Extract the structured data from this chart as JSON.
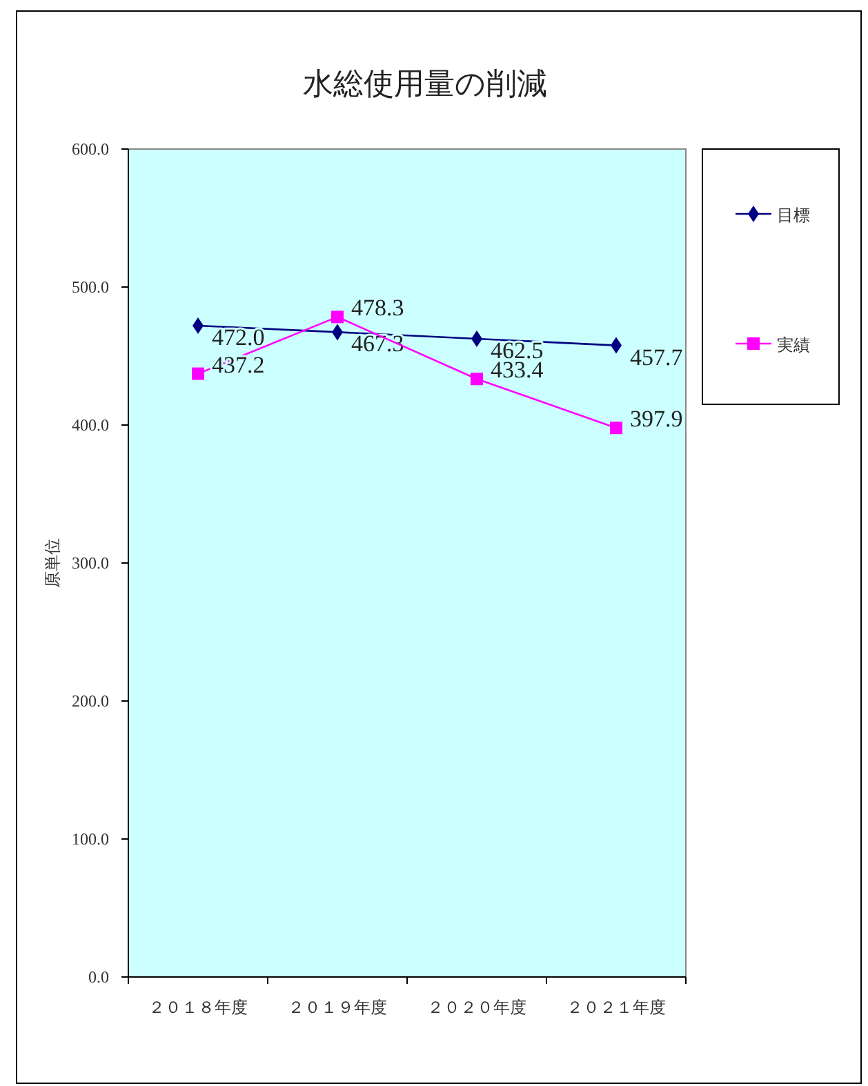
{
  "chart_data": {
    "type": "line",
    "title": "水総使用量の削減",
    "ylabel": "原単位",
    "categories": [
      "２０１８年度",
      "２０１９年度",
      "２０２０年度",
      "２０２１年度"
    ],
    "series": [
      {
        "name": "目標",
        "color": "#000080",
        "marker": "diamond",
        "values": [
          472.0,
          467.3,
          462.5,
          457.7
        ],
        "value_labels": [
          "472.0",
          "467.3",
          "462.5",
          "457.7"
        ]
      },
      {
        "name": "実績",
        "color": "#ff00ff",
        "marker": "square",
        "values": [
          437.2,
          478.3,
          433.4,
          397.9
        ],
        "value_labels": [
          "437.2",
          "478.3",
          "433.4",
          "397.9"
        ]
      }
    ],
    "ylim": [
      0,
      600
    ],
    "yticks": [
      {
        "value": 0,
        "label": "0.0"
      },
      {
        "value": 100,
        "label": "100.0"
      },
      {
        "value": 200,
        "label": "200.0"
      },
      {
        "value": 300,
        "label": "300.0"
      },
      {
        "value": 400,
        "label": "400.0"
      },
      {
        "value": 500,
        "label": "500.0"
      },
      {
        "value": 600,
        "label": "600.0"
      }
    ],
    "legend": "right",
    "grid": false
  }
}
